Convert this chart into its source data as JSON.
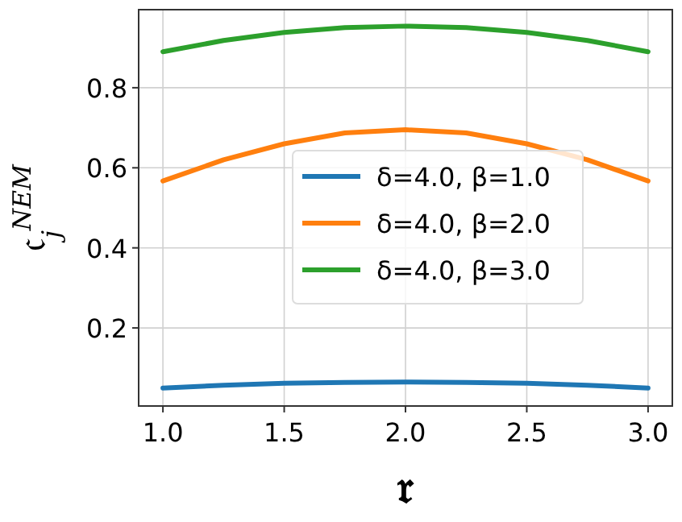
{
  "chart_data": {
    "type": "line",
    "xlabel": "𝔯",
    "ylabel": "𝔠$_{j}$$^{NEM}$",
    "x": [
      1.0,
      1.25,
      1.5,
      1.75,
      2.0,
      2.25,
      2.5,
      2.75,
      3.0
    ],
    "series": [
      {
        "name": "ẟ=4.0, β=1.0",
        "color": "#1f77b4",
        "values": [
          0.05,
          0.057,
          0.062,
          0.064,
          0.065,
          0.064,
          0.062,
          0.057,
          0.05
        ]
      },
      {
        "name": "ẟ=4.0, β=2.0",
        "color": "#ff7f0e",
        "values": [
          0.567,
          0.62,
          0.66,
          0.687,
          0.695,
          0.687,
          0.66,
          0.62,
          0.567
        ]
      },
      {
        "name": "ẟ=4.0, β=3.0",
        "color": "#2ca02c",
        "values": [
          0.89,
          0.918,
          0.938,
          0.95,
          0.954,
          0.95,
          0.938,
          0.918,
          0.89
        ]
      }
    ],
    "xlim": [
      0.9,
      3.1
    ],
    "ylim": [
      0.005,
      0.995
    ],
    "xticks": [
      {
        "value": 1,
        "label": "1.0"
      },
      1.5,
      {
        "value": 2,
        "label": "2.0"
      },
      2.5,
      {
        "value": 3,
        "label": "3.0"
      }
    ],
    "yticks": [
      0.2,
      0.4,
      0.6,
      0.8
    ],
    "grid": true,
    "legend": "center",
    "line_style": "solid",
    "marker": "none"
  }
}
